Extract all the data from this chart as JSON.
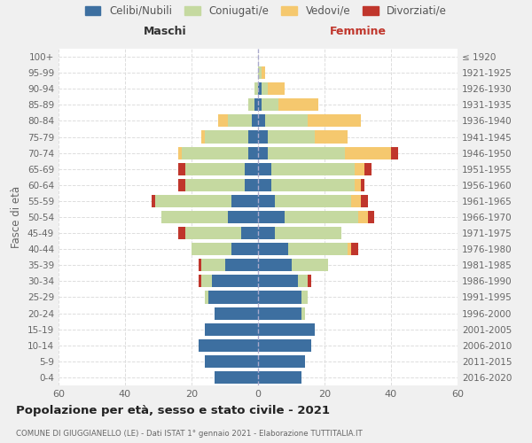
{
  "age_groups": [
    "0-4",
    "5-9",
    "10-14",
    "15-19",
    "20-24",
    "25-29",
    "30-34",
    "35-39",
    "40-44",
    "45-49",
    "50-54",
    "55-59",
    "60-64",
    "65-69",
    "70-74",
    "75-79",
    "80-84",
    "85-89",
    "90-94",
    "95-99",
    "100+"
  ],
  "birth_years": [
    "2016-2020",
    "2011-2015",
    "2006-2010",
    "2001-2005",
    "1996-2000",
    "1991-1995",
    "1986-1990",
    "1981-1985",
    "1976-1980",
    "1971-1975",
    "1966-1970",
    "1961-1965",
    "1956-1960",
    "1951-1955",
    "1946-1950",
    "1941-1945",
    "1936-1940",
    "1931-1935",
    "1926-1930",
    "1921-1925",
    "≤ 1920"
  ],
  "colors": {
    "celibi": "#3d6fa0",
    "coniugati": "#c5d9a0",
    "vedovi": "#f5c86e",
    "divorziati": "#c0362c"
  },
  "maschi": {
    "celibi": [
      13,
      16,
      18,
      16,
      13,
      15,
      14,
      10,
      8,
      5,
      9,
      8,
      4,
      4,
      3,
      3,
      2,
      1,
      0,
      0,
      0
    ],
    "coniugati": [
      0,
      0,
      0,
      0,
      0,
      1,
      3,
      7,
      12,
      17,
      20,
      23,
      18,
      18,
      20,
      13,
      7,
      2,
      1,
      0,
      0
    ],
    "vedovi": [
      0,
      0,
      0,
      0,
      0,
      0,
      0,
      0,
      0,
      0,
      0,
      0,
      0,
      0,
      1,
      1,
      3,
      0,
      0,
      0,
      0
    ],
    "divorziati": [
      0,
      0,
      0,
      0,
      0,
      0,
      1,
      1,
      0,
      2,
      0,
      1,
      2,
      2,
      0,
      0,
      0,
      0,
      0,
      0,
      0
    ]
  },
  "femmine": {
    "celibi": [
      13,
      14,
      16,
      17,
      13,
      13,
      12,
      10,
      9,
      5,
      8,
      5,
      4,
      4,
      3,
      3,
      2,
      1,
      1,
      0,
      0
    ],
    "coniugati": [
      0,
      0,
      0,
      0,
      1,
      2,
      3,
      11,
      18,
      20,
      22,
      23,
      25,
      25,
      23,
      14,
      13,
      5,
      2,
      1,
      0
    ],
    "vedovi": [
      0,
      0,
      0,
      0,
      0,
      0,
      0,
      0,
      1,
      0,
      3,
      3,
      2,
      3,
      14,
      10,
      16,
      12,
      5,
      1,
      0
    ],
    "divorziati": [
      0,
      0,
      0,
      0,
      0,
      0,
      1,
      0,
      2,
      0,
      2,
      2,
      1,
      2,
      2,
      0,
      0,
      0,
      0,
      0,
      0
    ]
  },
  "xlim": 60,
  "title": "Popolazione per età, sesso e stato civile - 2021",
  "subtitle": "COMUNE DI GIUGGIANELLO (LE) - Dati ISTAT 1° gennaio 2021 - Elaborazione TUTTITALIA.IT",
  "ylabel": "Fasce di età",
  "legend_labels": [
    "Celibi/Nubili",
    "Coniugati/e",
    "Vedovi/e",
    "Divorziati/e"
  ],
  "maschi_label": "Maschi",
  "femmine_label": "Femmine",
  "background_color": "#f0f0f0",
  "plot_bg": "#ffffff"
}
